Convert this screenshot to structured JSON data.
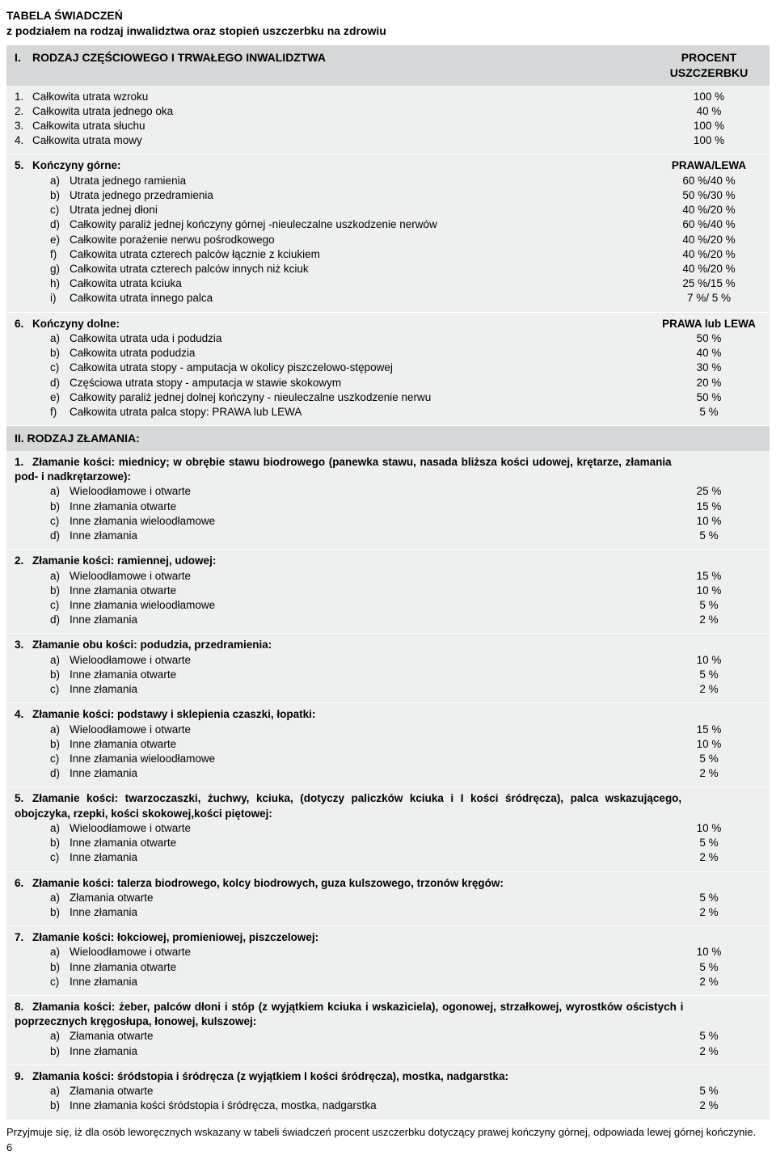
{
  "header": {
    "title": "TABELA ŚWIADCZEŃ",
    "subtitle": "z podziałem na rodzaj inwalidztwa oraz stopień uszczerbku na zdrowiu"
  },
  "colors": {
    "bar_bg": "#d5d7d8",
    "block_bg": "#eeefef",
    "text": "#000000"
  },
  "bar1": {
    "roman": "I.",
    "label": "RODZAJ CZĘŚCIOWEGO I TRWAŁEGO INWALIDZTWA",
    "col1": "PROCENT",
    "col2": "USZCZERBKU"
  },
  "simple": [
    {
      "n": "1.",
      "t": "Całkowita utrata wzroku",
      "v": "100 %"
    },
    {
      "n": "2.",
      "t": "Całkowita utrata jednego oka",
      "v": "40 %"
    },
    {
      "n": "3.",
      "t": "Całkowita utrata słuchu",
      "v": "100 %"
    },
    {
      "n": "4.",
      "t": "Całkowita utrata mowy",
      "v": "100 %"
    }
  ],
  "grp5": {
    "n": "5.",
    "t": "Kończyny górne:",
    "v": "PRAWA/LEWA",
    "items": [
      {
        "l": "a)",
        "t": "Utrata jednego ramienia",
        "v": "60 %/40 %"
      },
      {
        "l": "b)",
        "t": "Utrata jednego przedramienia",
        "v": "50 %/30 %"
      },
      {
        "l": "c)",
        "t": "Utrata jednej dłoni",
        "v": "40 %/20 %"
      },
      {
        "l": "d)",
        "t": "Całkowity paraliż jednej kończyny górnej -nieuleczalne uszkodzenie nerwów",
        "v": "60 %/40 %"
      },
      {
        "l": "e)",
        "t": "Całkowite porażenie nerwu pośrodkowego",
        "v": "40 %/20 %"
      },
      {
        "l": "f)",
        "t": "Całkowita utrata czterech palców łącznie z kciukiem",
        "v": "40 %/20 %"
      },
      {
        "l": "g)",
        "t": "Całkowita utrata czterech palców innych niż kciuk",
        "v": "40 %/20 %"
      },
      {
        "l": "h)",
        "t": "Całkowita utrata kciuka",
        "v": "25 %/15 %"
      },
      {
        "l": "i)",
        "t": "Całkowita utrata innego palca",
        "v": "7 %/  5 %"
      }
    ]
  },
  "grp6": {
    "n": "6.",
    "t": "Kończyny dolne:",
    "v": "PRAWA lub LEWA",
    "items": [
      {
        "l": "a)",
        "t": "Całkowita utrata uda i podudzia",
        "v": "50 %"
      },
      {
        "l": "b)",
        "t": "Całkowita utrata podudzia",
        "v": "40 %"
      },
      {
        "l": "c)",
        "t": "Całkowita utrata stopy - amputacja w okolicy piszczelowo-stępowej",
        "v": "30 %"
      },
      {
        "l": "d)",
        "t": "Częściowa utrata stopy - amputacja w stawie skokowym",
        "v": "20 %"
      },
      {
        "l": "e)",
        "t": "Całkowity paraliż jednej dolnej kończyny - nieuleczalne uszkodzenie nerwu",
        "v": "50 %"
      },
      {
        "l": "f)",
        "t": "Całkowita utrata palca stopy: PRAWA lub LEWA",
        "v": "5 %"
      }
    ]
  },
  "bar2": {
    "label": "II. RODZAJ ZŁAMANIA:"
  },
  "frac": [
    {
      "n": "1.",
      "t": "Złamanie kości: miednicy; w obrębie stawu biodrowego (panewka stawu, nasada bliższa kości udowej, krętarze, złamania pod- i nadkrętarzowe):",
      "items": [
        {
          "l": "a)",
          "t": "Wieloodłamowe i otwarte",
          "v": "25 %"
        },
        {
          "l": "b)",
          "t": "Inne złamania otwarte",
          "v": "15 %"
        },
        {
          "l": "c)",
          "t": "Inne złamania wieloodłamowe",
          "v": "10 %"
        },
        {
          "l": "d)",
          "t": "Inne złamania",
          "v": "5 %"
        }
      ]
    },
    {
      "n": "2.",
      "t": "Złamanie kości: ramiennej, udowej:",
      "items": [
        {
          "l": "a)",
          "t": "Wieloodłamowe i otwarte",
          "v": "15 %"
        },
        {
          "l": "b)",
          "t": "Inne złamania otwarte",
          "v": "10 %"
        },
        {
          "l": "c)",
          "t": "Inne złamania wieloodłamowe",
          "v": "5 %"
        },
        {
          "l": "d)",
          "t": "Inne złamania",
          "v": "2 %"
        }
      ]
    },
    {
      "n": "3.",
      "t": "Złamanie obu kości: podudzia, przedramienia:",
      "items": [
        {
          "l": "a)",
          "t": "Wieloodłamowe i otwarte",
          "v": "10 %"
        },
        {
          "l": "b)",
          "t": "Inne złamania otwarte",
          "v": "5 %"
        },
        {
          "l": "c)",
          "t": "Inne złamania",
          "v": "2 %"
        }
      ]
    },
    {
      "n": "4.",
      "t": "Złamanie kości: podstawy i sklepienia czaszki, łopatki:",
      "items": [
        {
          "l": "a)",
          "t": "Wieloodłamowe i otwarte",
          "v": "15 %"
        },
        {
          "l": "b)",
          "t": "Inne złamania otwarte",
          "v": "10 %"
        },
        {
          "l": "c)",
          "t": "Inne złamania wieloodłamowe",
          "v": "5 %"
        },
        {
          "l": "d)",
          "t": "Inne złamania",
          "v": "2 %"
        }
      ]
    },
    {
      "n": "5.",
      "t": "Złamanie kości: twarzoczaszki, żuchwy, kciuka, (dotyczy paliczków kciuka i I kości śródręcza), palca wskazującego, obojczyka, rzepki, kości skokowej,kości piętowej:",
      "items": [
        {
          "l": "a)",
          "t": "Wieloodłamowe i otwarte",
          "v": "10 %"
        },
        {
          "l": "b)",
          "t": "Inne złamania otwarte",
          "v": "5 %"
        },
        {
          "l": "c)",
          "t": "Inne złamania",
          "v": "2 %"
        }
      ]
    },
    {
      "n": "6.",
      "t": "Złamanie kości: talerza biodrowego, kolcy biodrowych, guza kulszowego, trzonów kręgów:",
      "items": [
        {
          "l": "a)",
          "t": "Złamania otwarte",
          "v": "5 %"
        },
        {
          "l": "b)",
          "t": "Inne złamania",
          "v": "2 %"
        }
      ]
    },
    {
      "n": "7.",
      "t": "Złamanie kości: łokciowej, promieniowej, piszczelowej:",
      "items": [
        {
          "l": "a)",
          "t": "Wieloodłamowe i otwarte",
          "v": "10 %"
        },
        {
          "l": "b)",
          "t": "Inne złamania otwarte",
          "v": "5 %"
        },
        {
          "l": "c)",
          "t": "Inne złamania",
          "v": "2 %"
        }
      ]
    },
    {
      "n": "8.",
      "t": "Złamania kości: żeber, palców dłoni i stóp (z wyjątkiem kciuka i wskaziciela), ogonowej, strzałkowej, wyrostków ościstych i poprzecznych kręgosłupa, łonowej, kulszowej:",
      "items": [
        {
          "l": "a)",
          "t": "Złamania otwarte",
          "v": "5 %"
        },
        {
          "l": "b)",
          "t": "Inne złamania",
          "v": "2 %"
        }
      ]
    },
    {
      "n": "9.",
      "t": "Złamania kości: śródstopia i śródręcza (z wyjątkiem I kości śródręcza), mostka, nadgarstka:",
      "items": [
        {
          "l": "a)",
          "t": "Złamania otwarte",
          "v": "5 %"
        },
        {
          "l": "b)",
          "t": "Inne złamania kości śródstopia i śródręcza, mostka, nadgarstka",
          "v": "2 %"
        }
      ]
    }
  ],
  "footnote": "Przyjmuje się, iż dla osób leworęcznych wskazany w tabeli świadczeń procent uszczerbku dotyczący prawej kończyny górnej, odpowiada lewej górnej kończynie.",
  "page_number": "6"
}
